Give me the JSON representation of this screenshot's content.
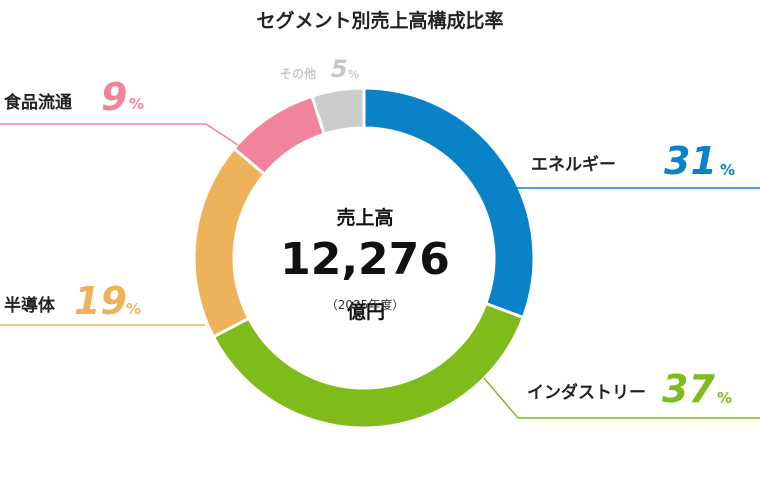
{
  "chart_data": {
    "type": "pie",
    "title": "セグメント別売上高構成比率",
    "center": {
      "label": "売上高",
      "value": "12,276",
      "unit": "億円",
      "note": "（2025年度）"
    },
    "categories": [
      "エネルギー",
      "インダストリー",
      "半導体",
      "食品流通",
      "その他"
    ],
    "values": [
      31,
      37,
      19,
      9,
      5
    ],
    "value_suffix": "%",
    "colors": [
      "#0a82c8",
      "#80bb1c",
      "#eeb35a",
      "#f1849a",
      "#cccccc"
    ]
  }
}
